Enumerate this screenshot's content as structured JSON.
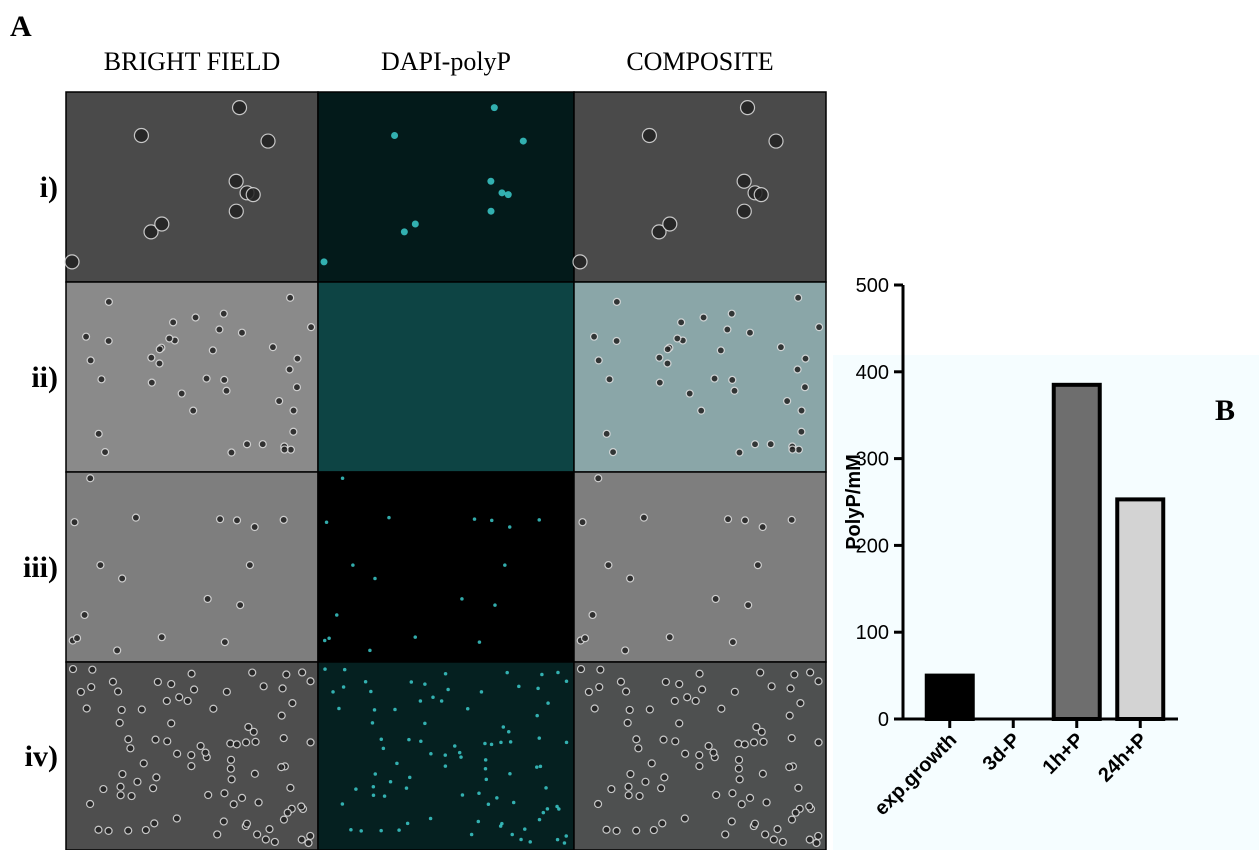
{
  "panel_a": {
    "label": "A",
    "columns": [
      "BRIGHT FIELD",
      "DAPI-polyP",
      "COMPOSITE"
    ],
    "rows": [
      "i)",
      "ii)",
      "iii)",
      "iv)"
    ]
  },
  "chart_data": {
    "type": "bar",
    "annotation": "B",
    "ylabel": "PolyP/mM",
    "categories": [
      "exp.growth",
      "3d-P",
      "1h+P",
      "24h+P"
    ],
    "values": [
      50,
      0,
      385,
      253
    ],
    "colors": [
      "#000000",
      "#000000",
      "#6e6e6e",
      "#d3d3d3"
    ],
    "ylim": [
      0,
      500
    ],
    "yticks": [
      0,
      100,
      200,
      300,
      400,
      500
    ]
  }
}
